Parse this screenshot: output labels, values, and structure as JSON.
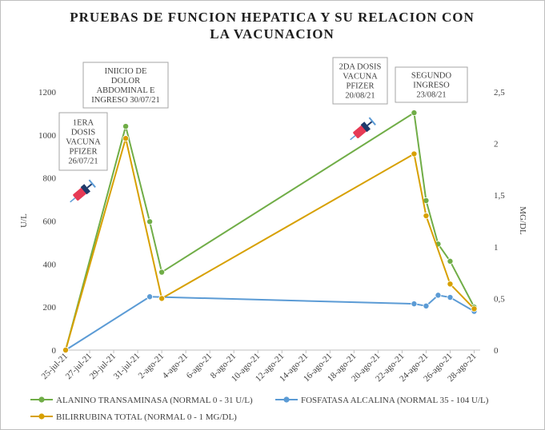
{
  "chart_data": {
    "type": "line",
    "title_lines": [
      "PRUEBAS DE FUNCION HEPATICA Y SU RELACION CON",
      "LA VACUNACION"
    ],
    "xlabel": "",
    "ylabel": "U/L",
    "y2label": "MG/DL",
    "x_tick_labels": [
      "25-jul-21",
      "27-jul-21",
      "29-jul-21",
      "31-jul-21",
      "2-ago-21",
      "4-ago-21",
      "6-ago-21",
      "8-ago-21",
      "10-ago-21",
      "12-ago-21",
      "14-ago-21",
      "16-ago-21",
      "18-ago-21",
      "20-ago-21",
      "22-ago-21",
      "24-ago-21",
      "26-ago-21",
      "28-ago-21"
    ],
    "y_tick_labels": [
      "0",
      "200",
      "400",
      "600",
      "800",
      "1000",
      "1200"
    ],
    "y2_tick_labels": [
      "0",
      "0,5",
      "1",
      "1,5",
      "2",
      "2,5"
    ],
    "ylim": [
      0,
      1200
    ],
    "y2lim": [
      0,
      2.5
    ],
    "grid": false,
    "legend_position": "bottom",
    "series": [
      {
        "name": "ALANINO TRANSAMINASA (NORMAL 0 - 31 U/L)",
        "axis": "left",
        "color": "#70ad47",
        "points": [
          [
            "2021-07-25",
            0
          ],
          [
            "2021-07-30",
            1040
          ],
          [
            "2021-08-01",
            597
          ],
          [
            "2021-08-02",
            362
          ],
          [
            "2021-08-23",
            1103
          ],
          [
            "2021-08-24",
            695
          ],
          [
            "2021-08-25",
            493
          ],
          [
            "2021-08-26",
            413
          ],
          [
            "2021-08-28",
            200
          ]
        ]
      },
      {
        "name": "FOSFATASA ALCALINA (NORMAL 35 - 104 U/L)",
        "axis": "left",
        "color": "#5b9bd5",
        "points": [
          [
            "2021-07-25",
            0
          ],
          [
            "2021-08-01",
            248
          ],
          [
            "2021-08-23",
            215
          ],
          [
            "2021-08-24",
            205
          ],
          [
            "2021-08-25",
            255
          ],
          [
            "2021-08-26",
            245
          ],
          [
            "2021-08-28",
            180
          ]
        ]
      },
      {
        "name": "BILIRRUBINA TOTAL (NORMAL 0 - 1 MG/DL)",
        "axis": "right",
        "color": "#d7a000",
        "points": [
          [
            "2021-07-25",
            0
          ],
          [
            "2021-07-30",
            2.05
          ],
          [
            "2021-08-02",
            0.5
          ],
          [
            "2021-08-23",
            1.9
          ],
          [
            "2021-08-24",
            1.3
          ],
          [
            "2021-08-26",
            0.64
          ],
          [
            "2021-08-28",
            0.4
          ]
        ]
      }
    ],
    "annotations": [
      {
        "lines": [
          "1ERA",
          "DOSIS",
          "VACUNA",
          "PFIZER",
          "26/07/21"
        ],
        "date": "2021-07-26",
        "icon": "syringe-icon"
      },
      {
        "lines": [
          "INIICIO DE",
          "DOLOR",
          "ABDOMINAL E",
          "INGRESO 30/07/21"
        ],
        "date": "2021-07-30"
      },
      {
        "lines": [
          "2DA DOSIS",
          "VACUNA",
          "PFIZER",
          "20/08/21"
        ],
        "date": "2021-08-20",
        "icon": "syringe-icon"
      },
      {
        "lines": [
          "SEGUNDO",
          "INGRESO",
          "23/08/21"
        ],
        "date": "2021-08-23"
      }
    ]
  }
}
